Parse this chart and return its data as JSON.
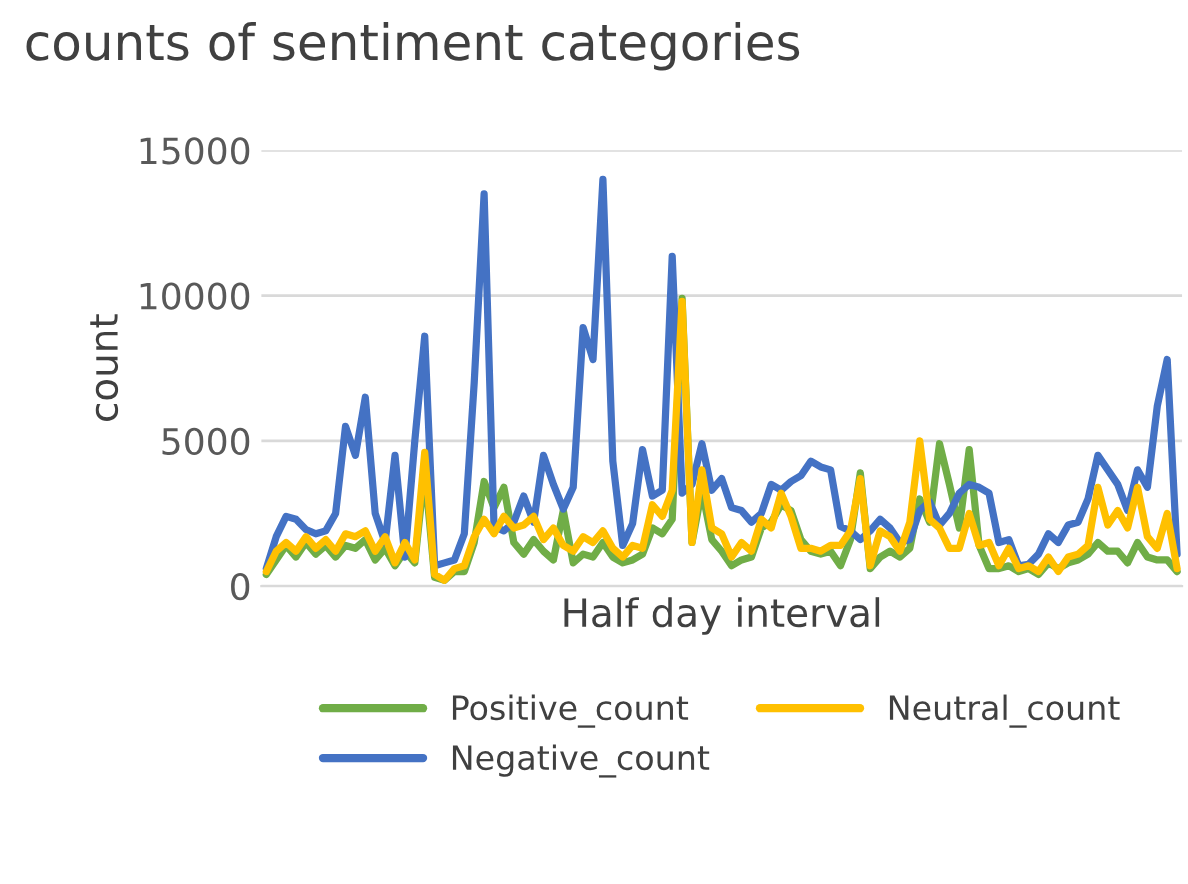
{
  "chart_data": {
    "type": "line",
    "title": "counts of sentiment categories",
    "xlabel": "Half day interval",
    "ylabel": "count",
    "categories": [
      null,
      null,
      null,
      null,
      null,
      null,
      null,
      null,
      null,
      null,
      null,
      null,
      null,
      null,
      null,
      null,
      null,
      null,
      null,
      null,
      null,
      null,
      null,
      null,
      null,
      null,
      null,
      null,
      null,
      null,
      null,
      null,
      null,
      null,
      null,
      null,
      null,
      null,
      null,
      null,
      null,
      null,
      null,
      null,
      null,
      null,
      null,
      null,
      null,
      null,
      null,
      null,
      null,
      null,
      null,
      null,
      null,
      null,
      null,
      null,
      null,
      null,
      null,
      null,
      null,
      null,
      null,
      null,
      null,
      null,
      null,
      null,
      null,
      null,
      null,
      null,
      null,
      null,
      null,
      null,
      null,
      null,
      null,
      null,
      null,
      null,
      null,
      null,
      null,
      null,
      null,
      null,
      null
    ],
    "ylim": [
      0,
      15000
    ],
    "yticks": [
      0,
      5000,
      10000,
      15000
    ],
    "grid": "y",
    "legend": "bottom",
    "tick_labels": "y",
    "marker": "none",
    "line_style": "solid",
    "series": [
      {
        "name": "Positive_count",
        "color": "#70ad47",
        "values": [
          400,
          900,
          1400,
          1000,
          1500,
          1100,
          1400,
          1000,
          1400,
          1300,
          1600,
          900,
          1300,
          700,
          1200,
          800,
          4000,
          300,
          200,
          500,
          500,
          1500,
          3600,
          2700,
          3400,
          1500,
          1100,
          1600,
          1200,
          900,
          2600,
          800,
          1100,
          1000,
          1500,
          1000,
          800,
          900,
          1100,
          2000,
          1800,
          2300,
          9900,
          1500,
          3300,
          1600,
          1200,
          700,
          900,
          1000,
          2000,
          2200,
          2800,
          2600,
          1600,
          1200,
          1100,
          1200,
          700,
          1600,
          3900,
          600,
          1000,
          1200,
          1000,
          1300,
          3000,
          2200,
          4900,
          3500,
          2000,
          4700,
          1400,
          600,
          600,
          700,
          500,
          600,
          400,
          800,
          600,
          800,
          900,
          1100,
          1500,
          1200,
          1200,
          800,
          1500,
          1000,
          900,
          900,
          500
        ]
      },
      {
        "name": "Negative_count",
        "color": "#4472c4",
        "values": [
          600,
          1700,
          2400,
          2300,
          1950,
          1800,
          1900,
          2500,
          5500,
          4500,
          6500,
          2500,
          1500,
          4500,
          1000,
          5000,
          8600,
          700,
          800,
          900,
          1800,
          7000,
          13500,
          2050,
          1900,
          2200,
          3100,
          2200,
          4500,
          3500,
          2650,
          3400,
          8900,
          7800,
          14000,
          4300,
          1400,
          2150,
          4700,
          3100,
          3300,
          11350,
          3200,
          3500,
          4900,
          3300,
          3700,
          2700,
          2600,
          2200,
          2500,
          3500,
          3300,
          3600,
          3800,
          4300,
          4100,
          4000,
          2050,
          1900,
          1600,
          1900,
          2300,
          2000,
          1500,
          1600,
          2600,
          2900,
          2100,
          2500,
          3200,
          3500,
          3400,
          3200,
          1500,
          1600,
          700,
          750,
          1100,
          1800,
          1500,
          2100,
          2200,
          3000,
          4500,
          4000,
          3500,
          2600,
          4000,
          3400,
          6200,
          7800,
          1100
        ]
      },
      {
        "name": "Neutral_count",
        "color": "#ffc000",
        "values": [
          500,
          1200,
          1500,
          1200,
          1700,
          1300,
          1600,
          1200,
          1800,
          1700,
          1900,
          1200,
          1700,
          800,
          1500,
          900,
          4600,
          400,
          200,
          600,
          700,
          1700,
          2300,
          1800,
          2400,
          2000,
          2100,
          2400,
          1600,
          2000,
          1400,
          1200,
          1700,
          1500,
          1900,
          1300,
          1000,
          1400,
          1300,
          2800,
          2400,
          3300,
          9800,
          1500,
          4000,
          2000,
          1800,
          1000,
          1500,
          1200,
          2300,
          2000,
          3200,
          2400,
          1300,
          1300,
          1200,
          1400,
          1400,
          1900,
          3700,
          700,
          1900,
          1700,
          1200,
          2200,
          5000,
          2300,
          2000,
          1300,
          1300,
          2500,
          1400,
          1500,
          700,
          1300,
          600,
          700,
          500,
          1000,
          500,
          1000,
          1100,
          1400,
          3400,
          2100,
          2600,
          2000,
          3400,
          1700,
          1300,
          2500,
          600
        ]
      }
    ]
  }
}
